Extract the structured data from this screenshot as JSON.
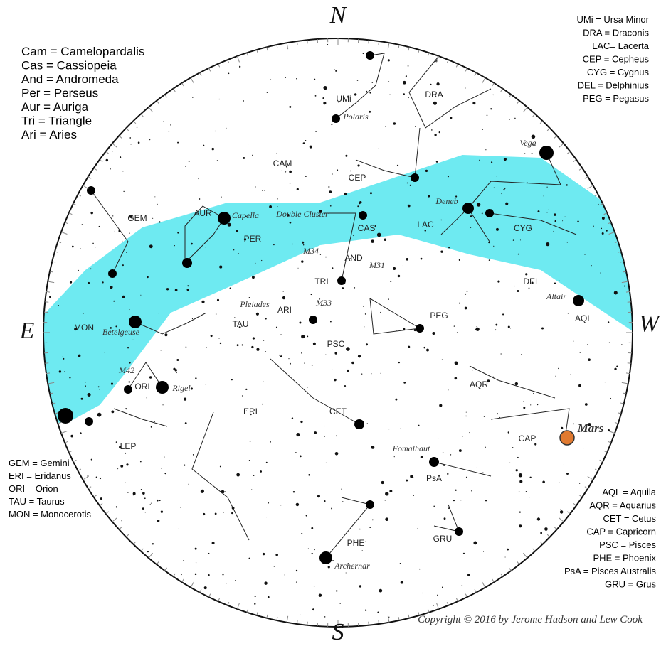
{
  "compass": {
    "north": "N",
    "east": "E",
    "west": "W",
    "south": "S"
  },
  "legends": {
    "top_left": [
      "Cam = Camelopardalis",
      "Cas = Cassiopeia",
      "And = Andromeda",
      "Per = Perseus",
      "Aur = Auriga",
      "Tri = Triangle",
      "Ari = Aries"
    ],
    "top_right": [
      "UMi = Ursa Minor",
      "DRA = Draconis",
      "LAC= Lacerta",
      "CEP = Cepheus",
      "CYG = Cygnus",
      "DEL = Delphinius",
      "PEG = Pegasus"
    ],
    "bottom_left": [
      "GEM = Gemini",
      "ERI = Eridanus",
      "ORI = Orion",
      "TAU = Taurus",
      "MON = Monocerotis"
    ],
    "bottom_right": [
      "AQL = Aquila",
      "AQR = Aquarius",
      "CET = Cetus",
      "CAP = Capricorn",
      "PSC = Pisces",
      "PHE = Phoenix",
      "PsA = Pisces Australis",
      "GRU = Grus"
    ]
  },
  "labels": [
    "UMi",
    "Polaris",
    "DRA",
    "Vega",
    "CAM",
    "CEP",
    "GEM",
    "AUR",
    "Capella",
    "Double Cluster",
    "CAS",
    "LAC",
    "Deneb",
    "CYG",
    "PER",
    "M34",
    "AND",
    "M31",
    "TRI",
    "DEL",
    "Altair",
    "Pleiades",
    "ARI",
    "M33",
    "PEG",
    "AQL",
    "MON",
    "Betelgeuse",
    "TAU",
    "PSC",
    "M42",
    "ORI",
    "Rigel",
    "AQR",
    "ERI",
    "CET",
    "Mars",
    "CAP",
    "Fomalhaut",
    "LEP",
    "PsA",
    "PHE",
    "GRU",
    "Archernar"
  ],
  "copyright": "Copyright © 2016 by Jerome Hudson and Lew Cook"
}
